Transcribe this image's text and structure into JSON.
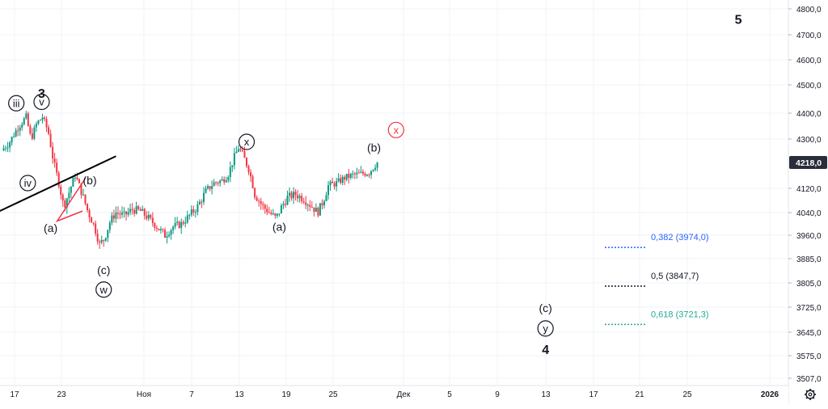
{
  "chart_data": {
    "type": "candlestick",
    "y_axis": {
      "ticks": [
        4800,
        4700,
        4600,
        4500,
        4400,
        4300,
        4218,
        4120,
        4040,
        3960,
        3885,
        3805,
        3725,
        3645,
        3575,
        3507
      ],
      "tick_labels": [
        "4800,0",
        "4700,0",
        "4600,0",
        "4500,0",
        "4400,0",
        "4300,0",
        "4218,0",
        "4120,0",
        "4040,0",
        "3960,0",
        "3885,0",
        "3805,0",
        "3725,0",
        "3645,0",
        "3575,0",
        "3507,0"
      ],
      "range": [
        3507,
        4800
      ],
      "last_price": 4218.0,
      "last_price_label": "4218,0"
    },
    "x_axis": {
      "tick_labels": [
        "17",
        "23",
        "Ноя",
        "7",
        "13",
        "19",
        "25",
        "Дек",
        "5",
        "9",
        "13",
        "17",
        "21",
        "25",
        "2026"
      ]
    },
    "price_path": [
      [
        0,
        4260
      ],
      [
        1,
        4290
      ],
      [
        2,
        4345
      ],
      [
        3,
        4385
      ],
      [
        3.6,
        4300
      ],
      [
        4.3,
        4360
      ],
      [
        5,
        4385
      ],
      [
        5.7,
        4330
      ],
      [
        6.3,
        4230
      ],
      [
        7,
        4140
      ],
      [
        7.6,
        4060
      ],
      [
        8.3,
        4110
      ],
      [
        9,
        4170
      ],
      [
        9.5,
        4130
      ],
      [
        10,
        4090
      ],
      [
        10.6,
        4040
      ],
      [
        11.3,
        3995
      ],
      [
        12,
        3930
      ],
      [
        12.6,
        3950
      ],
      [
        13.3,
        4010
      ],
      [
        14,
        4040
      ],
      [
        15,
        4030
      ],
      [
        16,
        4050
      ],
      [
        17,
        4045
      ],
      [
        18,
        4020
      ],
      [
        19,
        3990
      ],
      [
        20,
        3960
      ],
      [
        21,
        3990
      ],
      [
        22,
        4000
      ],
      [
        23,
        4030
      ],
      [
        24,
        4060
      ],
      [
        25,
        4110
      ],
      [
        26,
        4140
      ],
      [
        27,
        4150
      ],
      [
        27.7,
        4170
      ],
      [
        28.4,
        4230
      ],
      [
        29,
        4270
      ],
      [
        29.6,
        4240
      ],
      [
        30.3,
        4190
      ],
      [
        31,
        4100
      ],
      [
        32,
        4060
      ],
      [
        33,
        4035
      ],
      [
        33.6,
        4020
      ],
      [
        34.3,
        4060
      ],
      [
        35,
        4090
      ],
      [
        36,
        4100
      ],
      [
        37,
        4085
      ],
      [
        38,
        4060
      ],
      [
        38.7,
        4040
      ],
      [
        39.4,
        4080
      ],
      [
        40,
        4130
      ],
      [
        41,
        4140
      ],
      [
        42,
        4160
      ],
      [
        43,
        4170
      ],
      [
        44,
        4175
      ],
      [
        45,
        4180
      ],
      [
        45.5,
        4200
      ],
      [
        46,
        4218
      ]
    ],
    "wave_labels": [
      {
        "text": "3",
        "circled": false,
        "bold": true,
        "x": 4.9,
        "y": 4470
      },
      {
        "text": "iii",
        "circled": true,
        "x": 1.8,
        "y": 4435
      },
      {
        "text": "v",
        "circled": true,
        "x": 4.9,
        "y": 4440
      },
      {
        "text": "iv",
        "circled": true,
        "x": 3.2,
        "y": 4140
      },
      {
        "text": "(b)",
        "circled": false,
        "x": 10.8,
        "y": 4150
      },
      {
        "text": "(a)",
        "circled": false,
        "x": 6.0,
        "y": 3985
      },
      {
        "text": "(c)",
        "circled": false,
        "x": 12.5,
        "y": 3848
      },
      {
        "text": "w",
        "circled": true,
        "x": 12.5,
        "y": 3783
      },
      {
        "text": "x",
        "circled": true,
        "x": 30.0,
        "y": 4290
      },
      {
        "text": "(a)",
        "circled": false,
        "x": 34.0,
        "y": 3990
      },
      {
        "text": "(b)",
        "circled": false,
        "x": 45.6,
        "y": 4270
      },
      {
        "text": "x",
        "circled": true,
        "color": "#f23645",
        "x": 48.3,
        "y": 4335
      },
      {
        "text": "(c)",
        "circled": false,
        "x": 66.6,
        "y": 3722
      },
      {
        "text": "y",
        "circled": true,
        "x": 66.6,
        "y": 3657
      },
      {
        "text": "4",
        "circled": false,
        "bold": true,
        "x": 66.6,
        "y": 3593
      },
      {
        "text": "5",
        "circled": false,
        "bold": true,
        "x": 90.2,
        "y": 4760
      }
    ],
    "fibonacci_levels": [
      {
        "label": "0,382 (3974,0)",
        "value": 3974.0,
        "color": "#2962ff"
      },
      {
        "label": "0,5 (3847,7)",
        "value": 3847.7,
        "color": "#131722"
      },
      {
        "label": "0,618 (3721,3)",
        "value": 3721.3,
        "color": "#22ab94"
      }
    ],
    "trendline": {
      "from": [
        -1,
        4035
      ],
      "to": [
        14,
        4240
      ],
      "color": "#000000"
    },
    "triangle": {
      "points": [
        [
          10.3,
          4160
        ],
        [
          6.8,
          4010
        ],
        [
          9.9,
          4045
        ]
      ],
      "color": "#f23645"
    },
    "grid": true
  },
  "colors": {
    "up": "#089981",
    "down": "#f23645",
    "price_badge": "#2a2e39",
    "axis_text": "#131722",
    "grid": "#f0f3fa"
  },
  "icons": {
    "settings": "gear-icon"
  }
}
